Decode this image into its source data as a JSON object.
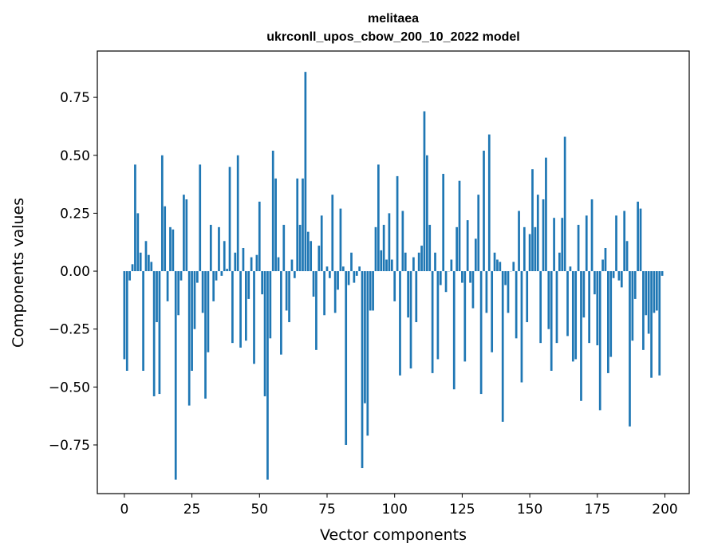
{
  "chart_data": {
    "type": "bar",
    "title_line1": "melitaea",
    "title_line2": "ukrconll_upos_cbow_200_10_2022 model",
    "xlabel": "Vector components",
    "ylabel": "Components values",
    "xlim": [
      -10,
      209
    ],
    "ylim": [
      -0.96,
      0.95
    ],
    "xticks": [
      0,
      25,
      50,
      75,
      100,
      125,
      150,
      175,
      200
    ],
    "xtick_labels": [
      "0",
      "25",
      "50",
      "75",
      "100",
      "125",
      "150",
      "175",
      "200"
    ],
    "yticks": [
      0.75,
      0.5,
      0.25,
      0.0,
      -0.25,
      -0.5,
      -0.75
    ],
    "ytick_labels": [
      "0.75",
      "0.50",
      "0.25",
      "0.00",
      "−0.25",
      "−0.50",
      "−0.75"
    ],
    "grid": false,
    "bar_color": "#1f77b4",
    "values": [
      -0.38,
      -0.43,
      -0.04,
      0.03,
      0.46,
      0.25,
      0.08,
      -0.43,
      0.13,
      0.07,
      0.04,
      -0.54,
      -0.22,
      -0.53,
      0.5,
      0.28,
      -0.13,
      0.19,
      0.18,
      -0.9,
      -0.19,
      -0.04,
      0.33,
      0.31,
      -0.58,
      -0.43,
      -0.25,
      -0.05,
      0.46,
      -0.18,
      -0.55,
      -0.35,
      0.2,
      -0.13,
      -0.04,
      0.19,
      -0.02,
      0.13,
      0.01,
      0.45,
      -0.31,
      0.08,
      0.5,
      -0.33,
      0.1,
      -0.3,
      -0.12,
      0.06,
      -0.4,
      0.07,
      0.3,
      -0.1,
      -0.54,
      -0.9,
      -0.29,
      0.52,
      0.4,
      0.06,
      -0.36,
      0.2,
      -0.17,
      -0.22,
      0.05,
      -0.03,
      0.4,
      0.2,
      0.4,
      0.86,
      0.17,
      0.13,
      -0.11,
      -0.34,
      0.11,
      0.24,
      -0.19,
      0.02,
      -0.03,
      0.33,
      -0.18,
      -0.08,
      0.27,
      0.02,
      -0.75,
      -0.06,
      0.08,
      -0.05,
      -0.02,
      0.02,
      -0.85,
      -0.57,
      -0.71,
      -0.17,
      -0.17,
      0.19,
      0.46,
      0.09,
      0.2,
      0.05,
      0.25,
      0.05,
      -0.13,
      0.41,
      -0.45,
      0.26,
      0.08,
      -0.2,
      -0.42,
      0.06,
      -0.22,
      0.08,
      0.11,
      0.69,
      0.5,
      0.2,
      -0.44,
      0.08,
      -0.38,
      -0.06,
      0.42,
      -0.09,
      0.0,
      0.05,
      -0.51,
      0.19,
      0.39,
      -0.05,
      -0.39,
      0.22,
      -0.05,
      -0.16,
      0.14,
      0.33,
      -0.53,
      0.52,
      -0.18,
      0.59,
      -0.35,
      0.08,
      0.05,
      0.04,
      -0.65,
      -0.06,
      -0.18,
      0.0,
      0.04,
      -0.29,
      0.26,
      -0.48,
      0.19,
      -0.22,
      0.16,
      0.44,
      0.19,
      0.33,
      -0.31,
      0.31,
      0.49,
      -0.25,
      -0.43,
      0.23,
      -0.31,
      0.08,
      0.23,
      0.58,
      -0.28,
      0.02,
      -0.39,
      -0.38,
      0.2,
      -0.56,
      -0.2,
      0.24,
      -0.31,
      0.31,
      -0.1,
      -0.32,
      -0.6,
      0.05,
      0.1,
      -0.44,
      -0.37,
      -0.03,
      0.24,
      -0.04,
      -0.07,
      0.26,
      0.13,
      -0.67,
      -0.3,
      -0.12,
      0.3,
      0.27,
      -0.34,
      -0.19,
      -0.27,
      -0.46,
      -0.18,
      -0.17,
      -0.45,
      -0.02
    ]
  }
}
